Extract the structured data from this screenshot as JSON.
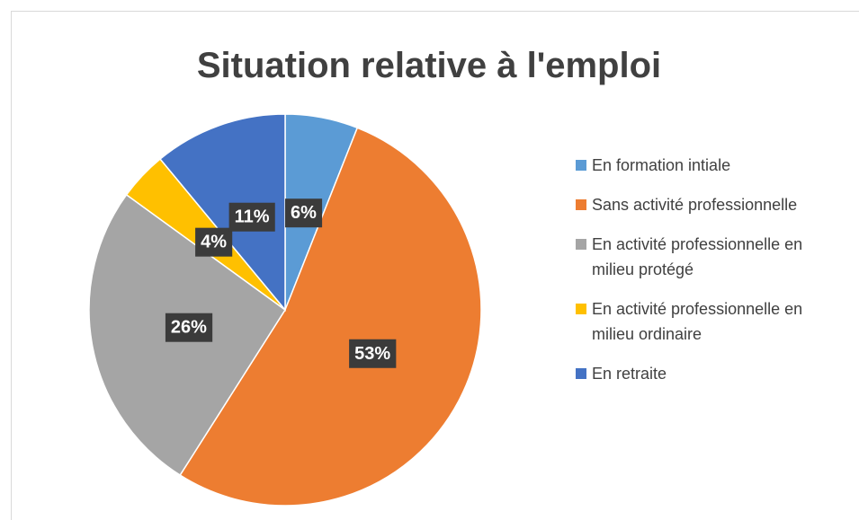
{
  "chart_data": {
    "type": "pie",
    "title": "Situation relative à l'emploi",
    "categories": [
      "En formation intiale",
      "Sans activité professionnelle",
      "En activité professionnelle en milieu protégé",
      "En activité professionnelle en milieu ordinaire",
      "En retraite"
    ],
    "values": [
      6,
      53,
      26,
      4,
      11
    ],
    "value_labels": [
      "6%",
      "53%",
      "26%",
      "4%",
      "11%"
    ],
    "colors": [
      "#5b9bd5",
      "#ed7d31",
      "#a5a5a5",
      "#ffc000",
      "#4472c4"
    ],
    "legend": "right"
  }
}
